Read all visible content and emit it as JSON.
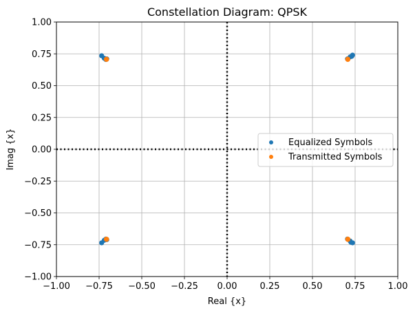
{
  "chart_data": {
    "type": "scatter",
    "title": "Constellation Diagram: QPSK",
    "xlabel": "Real {x}",
    "ylabel": "Imag {x}",
    "xlim": [
      -1.0,
      1.0
    ],
    "ylim": [
      -1.0,
      1.0
    ],
    "xticks": [
      "−1.00",
      "−0.75",
      "−0.50",
      "−0.25",
      "0.00",
      "0.25",
      "0.50",
      "0.75",
      "1.00"
    ],
    "yticks": [
      "1.00",
      "0.75",
      "0.50",
      "0.25",
      "0.00",
      "−0.25",
      "−0.50",
      "−0.75",
      "−1.00"
    ],
    "grid": true,
    "legend_position": "center-right",
    "reference_lines": [
      {
        "axis": "x",
        "value": 0.0,
        "style": "dotted"
      },
      {
        "axis": "y",
        "value": 0.0,
        "style": "dotted"
      }
    ],
    "series": [
      {
        "name": "Equalized Symbols",
        "color": "#1f77b4",
        "points": [
          [
            -0.735,
            0.735
          ],
          [
            -0.72,
            0.715
          ],
          [
            -0.71,
            0.705
          ],
          [
            -0.705,
            0.71
          ],
          [
            0.735,
            0.74
          ],
          [
            0.72,
            0.725
          ],
          [
            0.705,
            0.71
          ],
          [
            0.73,
            0.73
          ],
          [
            -0.735,
            -0.735
          ],
          [
            -0.72,
            -0.715
          ],
          [
            -0.71,
            -0.705
          ],
          [
            -0.705,
            -0.71
          ],
          [
            0.735,
            -0.735
          ],
          [
            0.72,
            -0.72
          ],
          [
            0.705,
            -0.705
          ],
          [
            0.725,
            -0.73
          ]
        ]
      },
      {
        "name": "Transmitted Symbols",
        "color": "#ff7f0e",
        "points": [
          [
            -0.707,
            0.707
          ],
          [
            0.707,
            0.707
          ],
          [
            -0.707,
            -0.707
          ],
          [
            0.707,
            -0.707
          ]
        ]
      }
    ]
  }
}
